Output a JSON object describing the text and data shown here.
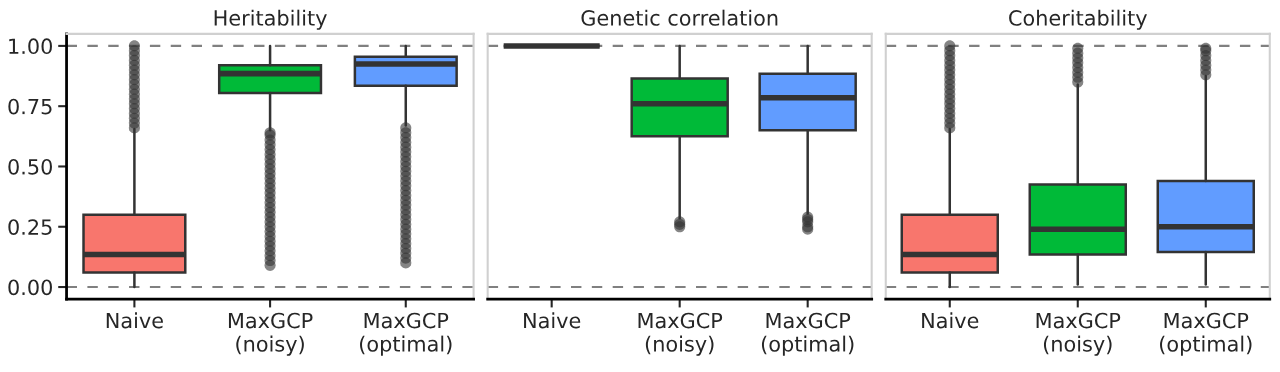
{
  "chart_data": [
    {
      "type": "box",
      "title": "Heritability",
      "categories": [
        "Naive",
        "MaxGCP\n(noisy)",
        "MaxGCP\n(optimal)"
      ],
      "colors": [
        "#f8766d",
        "#00ba38",
        "#619cff"
      ],
      "boxes": [
        {
          "low": 0.0,
          "q1": 0.06,
          "median": 0.135,
          "q3": 0.3,
          "high": 0.655,
          "outliers": [
            0.66,
            0.68,
            0.7,
            0.72,
            0.74,
            0.76,
            0.78,
            0.8,
            0.82,
            0.84,
            0.86,
            0.88,
            0.9,
            0.92,
            0.94,
            0.96,
            0.98,
            1.0
          ]
        },
        {
          "low": 0.65,
          "q1": 0.805,
          "median": 0.885,
          "q3": 0.92,
          "high": 1.0,
          "outliers": [
            0.09,
            0.11,
            0.13,
            0.15,
            0.17,
            0.19,
            0.21,
            0.23,
            0.25,
            0.27,
            0.29,
            0.31,
            0.33,
            0.35,
            0.37,
            0.39,
            0.41,
            0.43,
            0.45,
            0.47,
            0.49,
            0.51,
            0.53,
            0.55,
            0.57,
            0.59,
            0.61,
            0.63,
            0.64
          ]
        },
        {
          "low": 0.67,
          "q1": 0.835,
          "median": 0.925,
          "q3": 0.955,
          "high": 1.0,
          "outliers": [
            0.1,
            0.12,
            0.14,
            0.16,
            0.18,
            0.2,
            0.22,
            0.24,
            0.26,
            0.28,
            0.3,
            0.32,
            0.34,
            0.36,
            0.38,
            0.4,
            0.42,
            0.44,
            0.46,
            0.48,
            0.5,
            0.52,
            0.54,
            0.56,
            0.58,
            0.6,
            0.62,
            0.64,
            0.66
          ]
        }
      ],
      "ylim": [
        -0.05,
        1.05
      ],
      "yticks": [
        {
          "value": 0,
          "label": "0.00"
        },
        {
          "value": 0.25,
          "label": "0.25"
        },
        {
          "value": 0.5,
          "label": "0.50"
        },
        {
          "value": 0.75,
          "label": "0.75"
        },
        {
          "value": 1,
          "label": "1.00"
        }
      ],
      "ref_lines": [
        {
          "axis": "y",
          "value": 0,
          "color": "#808080",
          "line_style": "dashed"
        },
        {
          "axis": "y",
          "value": 1,
          "color": "#808080",
          "line_style": "dashed"
        }
      ],
      "grid": false
    },
    {
      "type": "box",
      "title": "Genetic correlation",
      "categories": [
        "Naive",
        "MaxGCP\n(noisy)",
        "MaxGCP\n(optimal)"
      ],
      "colors": [
        "#333333",
        "#00ba38",
        "#619cff"
      ],
      "boxes": [
        {
          "low": 1.0,
          "q1": 1.0,
          "median": 1.0,
          "q3": 1.0,
          "high": 1.0
        },
        {
          "low": 0.285,
          "q1": 0.625,
          "median": 0.76,
          "q3": 0.865,
          "high": 1.0,
          "outliers": [
            0.27,
            0.26,
            0.25
          ]
        },
        {
          "low": 0.305,
          "q1": 0.65,
          "median": 0.785,
          "q3": 0.885,
          "high": 1.0,
          "outliers": [
            0.29,
            0.28,
            0.27,
            0.25,
            0.24
          ]
        }
      ],
      "ylim": [
        -0.05,
        1.05
      ],
      "tick_labels": "x",
      "ref_lines": [
        {
          "axis": "y",
          "value": 0,
          "color": "#808080",
          "line_style": "dashed"
        },
        {
          "axis": "y",
          "value": 1,
          "color": "#808080",
          "line_style": "dashed"
        }
      ],
      "grid": false
    },
    {
      "type": "box",
      "title": "Coheritability",
      "categories": [
        "Naive",
        "MaxGCP\n(noisy)",
        "MaxGCP\n(optimal)"
      ],
      "colors": [
        "#f8766d",
        "#00ba38",
        "#619cff"
      ],
      "boxes": [
        {
          "low": 0.0,
          "q1": 0.06,
          "median": 0.135,
          "q3": 0.3,
          "high": 0.655,
          "outliers": [
            0.66,
            0.68,
            0.7,
            0.72,
            0.74,
            0.76,
            0.78,
            0.8,
            0.82,
            0.84,
            0.86,
            0.88,
            0.9,
            0.92,
            0.94,
            0.96,
            0.98,
            1.0
          ]
        },
        {
          "low": 0.01,
          "q1": 0.135,
          "median": 0.24,
          "q3": 0.425,
          "high": 0.84,
          "outliers": [
            0.85,
            0.87,
            0.89,
            0.91,
            0.93,
            0.95,
            0.97,
            0.99
          ]
        },
        {
          "low": 0.01,
          "q1": 0.145,
          "median": 0.25,
          "q3": 0.44,
          "high": 0.875,
          "outliers": [
            0.88,
            0.9,
            0.92,
            0.94,
            0.96,
            0.98,
            0.99
          ]
        }
      ],
      "ylim": [
        -0.05,
        1.05
      ],
      "tick_labels": "x",
      "ref_lines": [
        {
          "axis": "y",
          "value": 0,
          "color": "#808080",
          "line_style": "dashed"
        },
        {
          "axis": "y",
          "value": 1,
          "color": "#808080",
          "line_style": "dashed"
        }
      ],
      "grid": false
    }
  ]
}
